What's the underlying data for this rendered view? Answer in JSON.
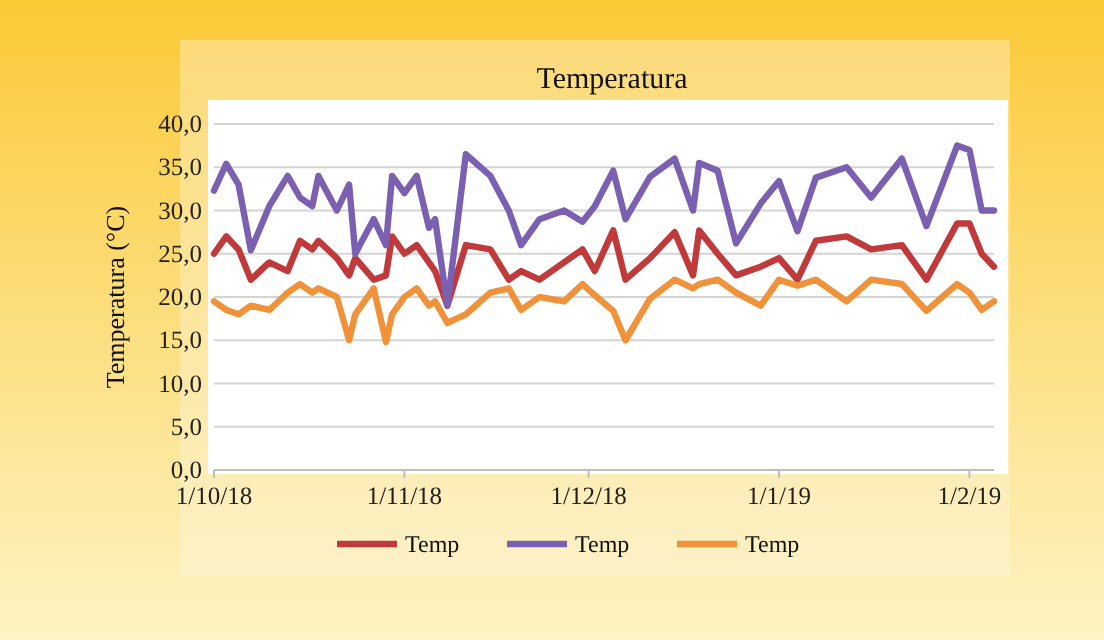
{
  "chart_data": {
    "type": "line",
    "title": "Temperatura",
    "ylabel": "Temperatura (°C)",
    "x": [
      "2018-10-01",
      "2018-10-03",
      "2018-10-05",
      "2018-10-07",
      "2018-10-10",
      "2018-10-13",
      "2018-10-15",
      "2018-10-17",
      "2018-10-18",
      "2018-10-21",
      "2018-10-23",
      "2018-10-24",
      "2018-10-27",
      "2018-10-29",
      "2018-10-30",
      "2018-11-01",
      "2018-11-03",
      "2018-11-05",
      "2018-11-06",
      "2018-11-08",
      "2018-11-11",
      "2018-11-15",
      "2018-11-18",
      "2018-11-20",
      "2018-11-23",
      "2018-11-27",
      "2018-11-30",
      "2018-12-02",
      "2018-12-05",
      "2018-12-07",
      "2018-12-11",
      "2018-12-15",
      "2018-12-18",
      "2018-12-19",
      "2018-12-22",
      "2018-12-25",
      "2018-12-29",
      "2019-01-01",
      "2019-01-04",
      "2019-01-07",
      "2019-01-12",
      "2019-01-16",
      "2019-01-21",
      "2019-01-25",
      "2019-01-30",
      "2019-02-01",
      "2019-02-03",
      "2019-02-05"
    ],
    "series": [
      {
        "name": "Temp",
        "color": "#c0393b",
        "values": [
          25,
          27,
          25.5,
          22,
          24,
          23,
          26.5,
          25.5,
          26.5,
          24.5,
          22.5,
          24.5,
          22,
          22.5,
          27,
          25,
          26,
          24,
          23,
          19,
          26,
          25.5,
          22,
          23,
          22,
          24,
          25.5,
          23,
          27.7,
          22,
          24.5,
          27.5,
          22.5,
          27.7,
          25,
          22.5,
          23.5,
          24.5,
          22,
          26.5,
          27,
          25.5,
          26,
          22,
          28.5,
          28.5,
          25,
          23.5
        ]
      },
      {
        "name": "Temp",
        "color": "#7b5fb0",
        "values": [
          32.3,
          35.4,
          33,
          25.4,
          30.5,
          34,
          31.5,
          30.5,
          34,
          30,
          33,
          25,
          29,
          26,
          34,
          32,
          34,
          28,
          29,
          19,
          36.5,
          34,
          30,
          26,
          29,
          30,
          28.7,
          30.5,
          34.6,
          29,
          33.9,
          36,
          30,
          35.5,
          34.6,
          26.2,
          30.8,
          33.4,
          27.6,
          33.8,
          35,
          31.5,
          36,
          28.2,
          37.5,
          37,
          30,
          30
        ]
      },
      {
        "name": "Temp",
        "color": "#f0923a",
        "values": [
          19.5,
          18.5,
          18,
          19,
          18.5,
          20.5,
          21.5,
          20.5,
          21,
          20,
          15,
          18,
          21,
          14.8,
          18,
          20,
          21,
          19,
          19.5,
          17,
          18,
          20.5,
          21,
          18.5,
          20,
          19.5,
          21.5,
          20.2,
          18.4,
          15,
          19.8,
          22,
          21,
          21.5,
          22,
          20.5,
          19,
          22,
          21.3,
          22,
          19.5,
          22,
          21.5,
          18.4,
          21.5,
          20.5,
          18.5,
          19.5
        ]
      }
    ],
    "xlim": [
      "2018-10-01",
      "2019-02-05"
    ],
    "xticks": [
      {
        "value": "2018-10-01",
        "label": "1/10/18"
      },
      {
        "value": "2018-11-01",
        "label": "1/11/18"
      },
      {
        "value": "2018-12-01",
        "label": "1/12/18"
      },
      {
        "value": "2019-01-01",
        "label": "1/1/19"
      },
      {
        "value": "2019-02-01",
        "label": "1/2/19"
      }
    ],
    "ylim": [
      0,
      40
    ],
    "yticks": [
      {
        "value": 0,
        "label": "0,0"
      },
      {
        "value": 5,
        "label": "5,0"
      },
      {
        "value": 10,
        "label": "10,0"
      },
      {
        "value": 15,
        "label": "15,0"
      },
      {
        "value": 20,
        "label": "20,0"
      },
      {
        "value": 25,
        "label": "25,0"
      },
      {
        "value": 30,
        "label": "30,0"
      },
      {
        "value": 35,
        "label": "35,0"
      },
      {
        "value": 40,
        "label": "40,0"
      }
    ],
    "grid": "y",
    "legend": "bottom",
    "marker": "none",
    "line_style": "solid"
  }
}
